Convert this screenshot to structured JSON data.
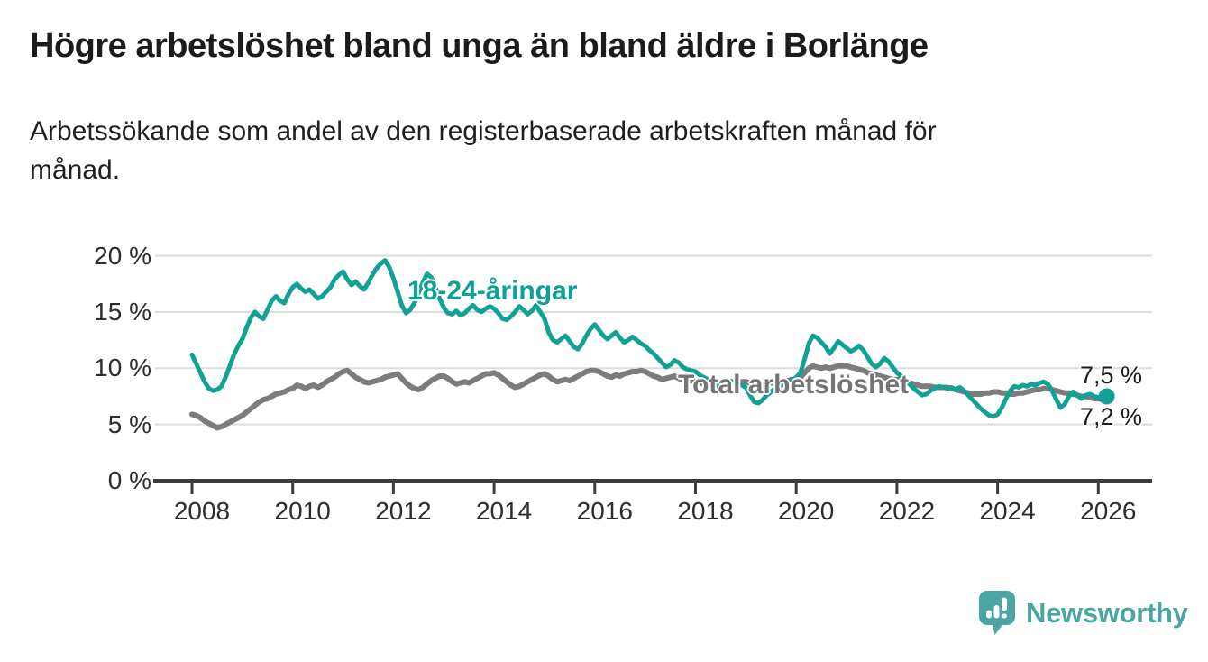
{
  "header": {
    "title": "Högre arbetslöshet bland unga än bland äldre i Borlänge",
    "subtitle": {
      "line1": "Arbetssökande som andel av den registerbaserade arbetskraften månad för",
      "line2": "månad."
    }
  },
  "chart_data": {
    "type": "line",
    "title": "Högre arbetslöshet bland unga än bland äldre i Borlänge",
    "xlabel": "",
    "ylabel": "",
    "frequency": "monthly",
    "x_start_year": 2008,
    "x_start_month": 1,
    "ylim": [
      0,
      20.5
    ],
    "xlim": [
      2008,
      2027
    ],
    "grid": "horizontal",
    "legend_position": "inline-labels",
    "yticks": [
      0,
      5,
      10,
      15,
      20
    ],
    "ytick_labels": [
      "0 %",
      "5 %",
      "10 %",
      "15 %",
      "20 %"
    ],
    "xticks": [
      2008,
      2010,
      2012,
      2014,
      2016,
      2018,
      2020,
      2022,
      2024,
      2026
    ],
    "xtick_labels": [
      "2008",
      "2010",
      "2012",
      "2014",
      "2016",
      "2018",
      "2020",
      "2022",
      "2024",
      "2026"
    ],
    "axis_color": "#3c3c3c",
    "grid_color": "#dcdcdc",
    "series": [
      {
        "name": "Total arbetslöshet",
        "color": "#7c7c7c",
        "label_color": "#757575",
        "end_label": "7,2 %",
        "end_value": 7.2,
        "end_dot": false,
        "stroke_width": 6,
        "values": [
          5.9,
          5.8,
          5.6,
          5.3,
          5.1,
          4.9,
          4.7,
          4.8,
          5.0,
          5.2,
          5.4,
          5.6,
          5.8,
          6.1,
          6.4,
          6.7,
          7.0,
          7.2,
          7.3,
          7.5,
          7.7,
          7.8,
          7.9,
          8.1,
          8.2,
          8.5,
          8.4,
          8.2,
          8.4,
          8.5,
          8.3,
          8.5,
          8.8,
          9.0,
          9.2,
          9.5,
          9.7,
          9.8,
          9.5,
          9.2,
          9.0,
          8.8,
          8.7,
          8.8,
          8.9,
          9.0,
          9.2,
          9.3,
          9.4,
          9.5,
          9.1,
          8.7,
          8.4,
          8.2,
          8.1,
          8.3,
          8.6,
          8.9,
          9.1,
          9.3,
          9.3,
          9.1,
          8.8,
          8.6,
          8.7,
          8.8,
          8.7,
          8.9,
          9.1,
          9.3,
          9.5,
          9.5,
          9.6,
          9.4,
          9.1,
          8.8,
          8.5,
          8.3,
          8.4,
          8.6,
          8.8,
          9.0,
          9.2,
          9.4,
          9.5,
          9.3,
          9.0,
          8.8,
          8.9,
          9.0,
          8.9,
          9.1,
          9.3,
          9.5,
          9.7,
          9.8,
          9.8,
          9.7,
          9.5,
          9.3,
          9.2,
          9.4,
          9.3,
          9.5,
          9.6,
          9.7,
          9.7,
          9.8,
          9.7,
          9.5,
          9.3,
          9.2,
          9.0,
          9.1,
          9.2,
          9.3,
          9.1,
          9.0,
          8.9,
          8.9,
          8.8,
          8.7,
          8.6,
          8.5,
          8.4,
          8.4,
          8.5,
          8.6,
          8.6,
          8.7,
          8.7,
          8.8,
          8.8,
          8.7,
          8.5,
          8.4,
          8.5,
          8.6,
          8.7,
          8.7,
          8.8,
          8.9,
          8.9,
          9.0,
          9.0,
          9.2,
          9.6,
          10.0,
          10.2,
          10.1,
          10.0,
          10.1,
          10.0,
          10.1,
          10.2,
          10.2,
          10.2,
          10.1,
          10.0,
          9.9,
          9.8,
          9.6,
          9.5,
          9.4,
          9.3,
          9.2,
          9.1,
          9.0,
          9.0,
          8.9,
          8.8,
          8.7,
          8.6,
          8.5,
          8.4,
          8.4,
          8.4,
          8.3,
          8.3,
          8.3,
          8.3,
          8.2,
          8.1,
          8.0,
          7.9,
          7.8,
          7.7,
          7.7,
          7.7,
          7.8,
          7.8,
          7.9,
          7.9,
          7.8,
          7.8,
          7.7,
          7.7,
          7.8,
          7.8,
          7.9,
          8.0,
          8.1,
          8.1,
          8.2,
          8.2,
          8.1,
          8.0,
          7.9,
          7.8,
          7.8,
          7.7,
          7.6,
          7.5,
          7.5,
          7.4,
          7.3,
          7.3,
          7.2,
          7.2
        ]
      },
      {
        "name": "18-24-åringar",
        "color": "#12a195",
        "label_color": "#0fa096",
        "end_label": "7,5 %",
        "end_value": 7.5,
        "end_dot": true,
        "stroke_width": 5,
        "values": [
          11.2,
          10.4,
          9.6,
          8.8,
          8.2,
          8.0,
          8.1,
          8.4,
          9.2,
          10.2,
          11.2,
          12.0,
          12.6,
          13.6,
          14.5,
          15.0,
          14.6,
          14.4,
          15.2,
          16.0,
          16.4,
          16.0,
          15.8,
          16.6,
          17.2,
          17.5,
          17.1,
          16.8,
          17.0,
          16.6,
          16.2,
          16.4,
          16.8,
          17.2,
          17.9,
          18.3,
          18.6,
          17.9,
          17.4,
          17.7,
          17.3,
          17.0,
          17.6,
          18.3,
          18.9,
          19.3,
          19.6,
          19.0,
          18.0,
          16.8,
          15.6,
          14.9,
          15.2,
          15.8,
          16.7,
          17.6,
          18.4,
          18.1,
          17.2,
          16.2,
          15.4,
          14.9,
          14.8,
          15.1,
          14.7,
          14.9,
          15.3,
          15.6,
          15.2,
          15.0,
          15.3,
          15.5,
          15.3,
          14.9,
          14.4,
          14.3,
          14.6,
          15.0,
          15.5,
          15.2,
          14.8,
          15.1,
          15.6,
          15.0,
          14.4,
          13.2,
          12.5,
          12.3,
          12.6,
          12.9,
          12.4,
          11.9,
          11.7,
          12.2,
          12.9,
          13.5,
          13.9,
          13.4,
          12.9,
          12.6,
          12.9,
          13.2,
          12.7,
          12.3,
          12.5,
          12.8,
          12.5,
          12.2,
          12.0,
          11.6,
          11.3,
          10.9,
          10.5,
          10.1,
          10.3,
          10.7,
          10.5,
          10.1,
          9.9,
          9.8,
          9.7,
          9.4,
          9.2,
          9.0,
          8.8,
          8.6,
          8.5,
          8.7,
          8.9,
          8.8,
          8.6,
          8.5,
          8.3,
          7.6,
          7.0,
          6.9,
          7.2,
          7.6,
          7.9,
          8.2,
          8.4,
          8.6,
          8.7,
          8.9,
          9.2,
          9.6,
          10.8,
          12.2,
          12.9,
          12.7,
          12.3,
          11.9,
          11.3,
          11.8,
          12.4,
          12.1,
          11.8,
          11.5,
          11.7,
          12.0,
          11.6,
          11.0,
          10.4,
          10.1,
          10.4,
          10.9,
          10.6,
          10.1,
          9.6,
          9.3,
          9.0,
          8.6,
          8.2,
          7.9,
          7.6,
          7.7,
          8.0,
          8.2,
          8.4,
          8.3,
          8.2,
          8.3,
          8.1,
          8.3,
          8.0,
          7.6,
          7.2,
          6.8,
          6.4,
          6.1,
          5.8,
          5.7,
          5.9,
          6.5,
          7.3,
          8.0,
          8.4,
          8.3,
          8.5,
          8.4,
          8.6,
          8.5,
          8.7,
          8.8,
          8.6,
          8.0,
          7.2,
          6.5,
          6.8,
          7.5,
          7.9,
          7.6,
          7.3,
          7.6,
          7.7,
          7.5,
          7.4,
          7.3,
          7.5
        ]
      }
    ]
  },
  "footer": {
    "brand": "Newsworthy",
    "brand_color": "#4ba5a2",
    "logo_icon": "speech-bubble-bar-chart-icon"
  }
}
